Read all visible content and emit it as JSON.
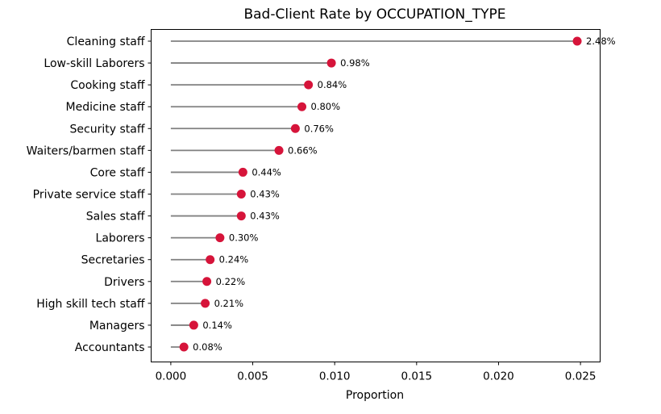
{
  "chart_data": {
    "type": "lollipop",
    "title": "Bad-Client Rate by OCCUPATION_TYPE",
    "xlabel": "Proportion",
    "ylabel": "",
    "xlim": [
      -0.0012,
      0.0262
    ],
    "xticks": [
      0.0,
      0.005,
      0.01,
      0.015,
      0.02,
      0.025
    ],
    "xtick_labels": [
      "0.000",
      "0.005",
      "0.010",
      "0.015",
      "0.020",
      "0.025"
    ],
    "grid": false,
    "stem_color": "#808080",
    "marker_color": "#d6143a",
    "categories": [
      "Cleaning staff",
      "Low-skill Laborers",
      "Cooking staff",
      "Medicine staff",
      "Security staff",
      "Waiters/barmen staff",
      "Core staff",
      "Private service staff",
      "Sales staff",
      "Laborers",
      "Secretaries",
      "Drivers",
      "High skill tech staff",
      "Managers",
      "Accountants"
    ],
    "values": [
      0.0248,
      0.0098,
      0.0084,
      0.008,
      0.0076,
      0.0066,
      0.0044,
      0.0043,
      0.0043,
      0.003,
      0.0024,
      0.0022,
      0.0021,
      0.0014,
      0.0008
    ],
    "data_labels": [
      "2.48%",
      "0.98%",
      "0.84%",
      "0.80%",
      "0.76%",
      "0.66%",
      "0.44%",
      "0.43%",
      "0.43%",
      "0.30%",
      "0.24%",
      "0.22%",
      "0.21%",
      "0.14%",
      "0.08%"
    ]
  }
}
